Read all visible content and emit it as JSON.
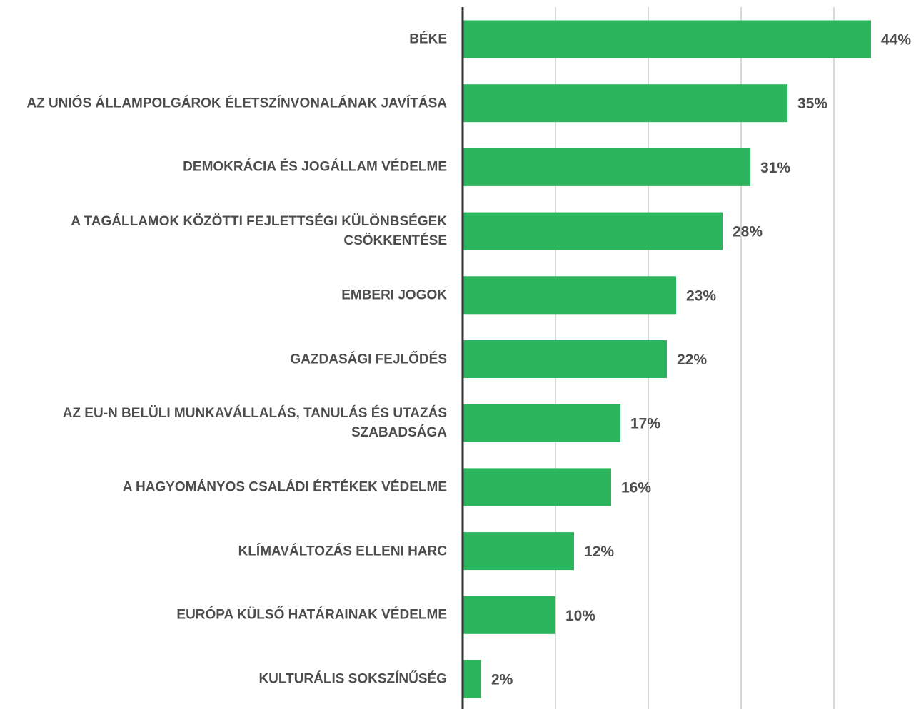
{
  "chart_data": {
    "type": "hbar",
    "categories": [
      "BÉKE",
      "AZ UNIÓS ÁLLAMPOLGÁROK ÉLETSZÍNVONALÁNAK JAVÍTÁSA",
      "DEMOKRÁCIA ÉS JOGÁLLAM VÉDELME",
      "A TAGÁLLAMOK KÖZÖTTI FEJLETTSÉGI KÜLÖNBSÉGEK CSÖKKENTÉSE",
      "EMBERI JOGOK",
      "GAZDASÁGI FEJLŐDÉS",
      "AZ EU-N BELÜLI MUNKAVÁLLALÁS, TANULÁS ÉS UTAZÁS SZABADSÁGA",
      "A HAGYOMÁNYOS CSALÁDI ÉRTÉKEK VÉDELME",
      "KLÍMAVÁLTOZÁS ELLENI HARC",
      "EURÓPA KÜLSŐ HATÁRAINAK VÉDELME",
      "KULTURÁLIS SOKSZÍNŰSÉG"
    ],
    "values": [
      44,
      35,
      31,
      28,
      23,
      22,
      17,
      16,
      12,
      10,
      2
    ],
    "value_labels": [
      "44%",
      "35%",
      "31%",
      "28%",
      "23%",
      "22%",
      "17%",
      "16%",
      "12%",
      "10%",
      "2%"
    ],
    "color": "#2db55d",
    "xlim": [
      0,
      49
    ],
    "xticks": [
      10,
      20,
      30,
      40
    ],
    "grid": true
  }
}
